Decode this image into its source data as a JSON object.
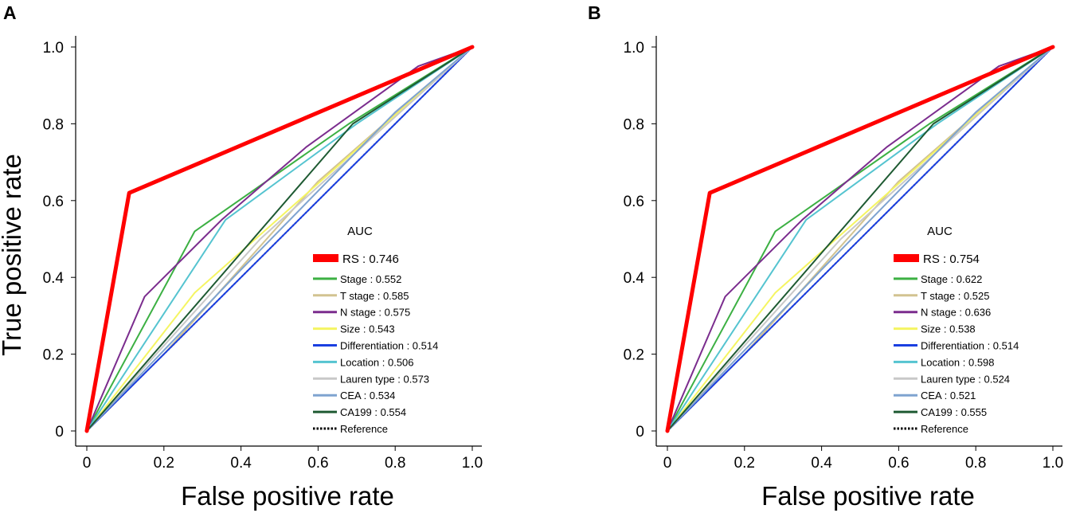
{
  "chart_data": [
    {
      "panel_label": "A",
      "type": "line",
      "xlabel": "False positive rate",
      "ylabel": "True positive rate",
      "xlim": [
        0,
        1
      ],
      "ylim": [
        0,
        1
      ],
      "x_ticks": [
        "0",
        "0.2",
        "0.4",
        "0.6",
        "0.8",
        "1.0"
      ],
      "y_ticks": [
        "0",
        "0.2",
        "0.4",
        "0.6",
        "0.8",
        "1.0"
      ],
      "legend_title": "AUC",
      "legend_position": "bottom-right",
      "series": [
        {
          "name": "RS",
          "label": "RS : 0.746",
          "color": "#ff0000",
          "points": [
            [
              0,
              0
            ],
            [
              0.11,
              0.62
            ],
            [
              1,
              1
            ]
          ]
        },
        {
          "name": "Stage",
          "label": "Stage : 0.552",
          "color": "#3cb043",
          "points": [
            [
              0,
              0
            ],
            [
              0.28,
              0.52
            ],
            [
              0.68,
              0.8
            ],
            [
              1,
              1
            ]
          ]
        },
        {
          "name": "T stage",
          "label": "T stage : 0.585",
          "color": "#d2c391",
          "points": [
            [
              0,
              0
            ],
            [
              0.2,
              0.2
            ],
            [
              0.6,
              0.65
            ],
            [
              1,
              1
            ]
          ]
        },
        {
          "name": "N stage",
          "label": "N stage : 0.575",
          "color": "#7b2d8e",
          "points": [
            [
              0,
              0
            ],
            [
              0.15,
              0.35
            ],
            [
              0.35,
              0.55
            ],
            [
              0.57,
              0.74
            ],
            [
              0.86,
              0.95
            ],
            [
              1,
              1
            ]
          ]
        },
        {
          "name": "Size",
          "label": "Size : 0.543",
          "color": "#f5f562",
          "points": [
            [
              0,
              0
            ],
            [
              0.28,
              0.36
            ],
            [
              1,
              1
            ]
          ]
        },
        {
          "name": "Differentiation",
          "label": "Differentiation : 0.514",
          "color": "#1a3fe0",
          "points": [
            [
              0,
              0
            ],
            [
              1,
              1
            ]
          ]
        },
        {
          "name": "Location",
          "label": "Location : 0.506",
          "color": "#55c4d0",
          "points": [
            [
              0,
              0
            ],
            [
              0.36,
              0.55
            ],
            [
              0.7,
              0.8
            ],
            [
              1,
              1
            ]
          ]
        },
        {
          "name": "Lauren type",
          "label": "Lauren type : 0.573",
          "color": "#c8c8c8",
          "points": [
            [
              0,
              0
            ],
            [
              0.45,
              0.5
            ],
            [
              1,
              1
            ]
          ]
        },
        {
          "name": "CEA",
          "label": "CEA : 0.534",
          "color": "#7fa3d0",
          "points": [
            [
              0,
              0
            ],
            [
              0.4,
              0.42
            ],
            [
              0.8,
              0.83
            ],
            [
              1,
              1
            ]
          ]
        },
        {
          "name": "CA199",
          "label": "CA199 : 0.554",
          "color": "#1e5a32",
          "points": [
            [
              0,
              0
            ],
            [
              0.69,
              0.8
            ],
            [
              1,
              1
            ]
          ]
        },
        {
          "name": "Reference",
          "label": "Reference",
          "color": "#000000",
          "dashed": true,
          "points": [
            [
              0,
              0
            ],
            [
              1,
              1
            ]
          ]
        }
      ]
    },
    {
      "panel_label": "B",
      "type": "line",
      "xlabel": "False positive rate",
      "ylabel": "",
      "xlim": [
        0,
        1
      ],
      "ylim": [
        0,
        1
      ],
      "x_ticks": [
        "0",
        "0.2",
        "0.4",
        "0.6",
        "0.8",
        "1.0"
      ],
      "y_ticks": [
        "0",
        "0.2",
        "0.4",
        "0.6",
        "0.8",
        "1.0"
      ],
      "legend_title": "AUC",
      "legend_position": "bottom-right",
      "series": [
        {
          "name": "RS",
          "label": "RS : 0.754",
          "color": "#ff0000",
          "points": [
            [
              0,
              0
            ],
            [
              0.11,
              0.62
            ],
            [
              1,
              1
            ]
          ]
        },
        {
          "name": "Stage",
          "label": "Stage : 0.622",
          "color": "#3cb043",
          "points": [
            [
              0,
              0
            ],
            [
              0.28,
              0.52
            ],
            [
              0.68,
              0.8
            ],
            [
              1,
              1
            ]
          ]
        },
        {
          "name": "T stage",
          "label": "T stage : 0.525",
          "color": "#d2c391",
          "points": [
            [
              0,
              0
            ],
            [
              0.2,
              0.2
            ],
            [
              0.6,
              0.65
            ],
            [
              1,
              1
            ]
          ]
        },
        {
          "name": "N stage",
          "label": "N stage : 0.636",
          "color": "#7b2d8e",
          "points": [
            [
              0,
              0
            ],
            [
              0.15,
              0.35
            ],
            [
              0.35,
              0.55
            ],
            [
              0.57,
              0.74
            ],
            [
              0.86,
              0.95
            ],
            [
              1,
              1
            ]
          ]
        },
        {
          "name": "Size",
          "label": "Size : 0.538",
          "color": "#f5f562",
          "points": [
            [
              0,
              0
            ],
            [
              0.28,
              0.36
            ],
            [
              1,
              1
            ]
          ]
        },
        {
          "name": "Differentiation",
          "label": "Differentiation : 0.514",
          "color": "#1a3fe0",
          "points": [
            [
              0,
              0
            ],
            [
              1,
              1
            ]
          ]
        },
        {
          "name": "Location",
          "label": "Location : 0.598",
          "color": "#55c4d0",
          "points": [
            [
              0,
              0
            ],
            [
              0.36,
              0.55
            ],
            [
              0.7,
              0.8
            ],
            [
              1,
              1
            ]
          ]
        },
        {
          "name": "Lauren type",
          "label": "Lauren type : 0.524",
          "color": "#c8c8c8",
          "points": [
            [
              0,
              0
            ],
            [
              0.45,
              0.5
            ],
            [
              1,
              1
            ]
          ]
        },
        {
          "name": "CEA",
          "label": "CEA : 0.521",
          "color": "#7fa3d0",
          "points": [
            [
              0,
              0
            ],
            [
              0.4,
              0.42
            ],
            [
              0.8,
              0.83
            ],
            [
              1,
              1
            ]
          ]
        },
        {
          "name": "CA199",
          "label": "CA199 : 0.555",
          "color": "#1e5a32",
          "points": [
            [
              0,
              0
            ],
            [
              0.69,
              0.8
            ],
            [
              1,
              1
            ]
          ]
        },
        {
          "name": "Reference",
          "label": "Reference",
          "color": "#000000",
          "dashed": true,
          "points": [
            [
              0,
              0
            ],
            [
              1,
              1
            ]
          ]
        }
      ]
    }
  ]
}
